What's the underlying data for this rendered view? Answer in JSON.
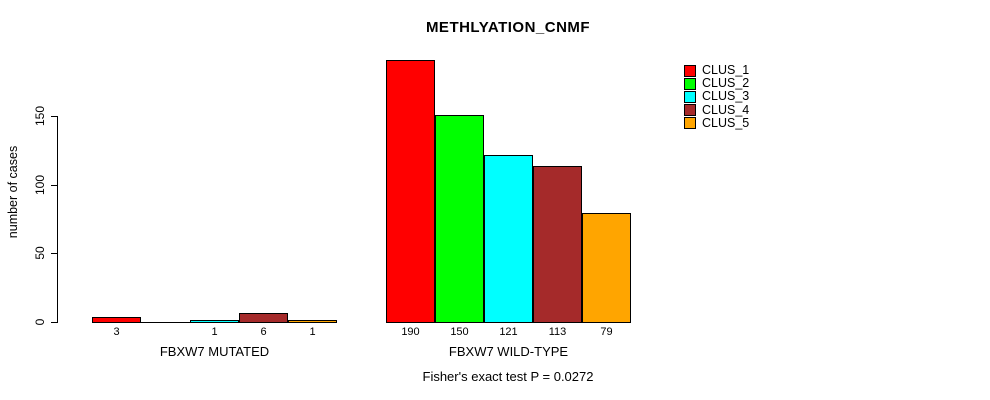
{
  "title": "METHLYATION_CNMF",
  "chart_data": {
    "type": "bar",
    "title": "METHLYATION_CNMF",
    "ylabel": "number of cases",
    "xlabel": "",
    "ylim": [
      0,
      195
    ],
    "yticks": [
      0,
      50,
      100,
      150
    ],
    "grid": false,
    "legend_position": "right",
    "series": [
      {
        "name": "CLUS_1",
        "color": "#FF0000"
      },
      {
        "name": "CLUS_2",
        "color": "#00FF00"
      },
      {
        "name": "CLUS_3",
        "color": "#00FFFF"
      },
      {
        "name": "CLUS_4",
        "color": "#A52A2A"
      },
      {
        "name": "CLUS_5",
        "color": "#FFA500"
      }
    ],
    "groups": [
      {
        "label": "FBXW7 MUTATED",
        "values": [
          3,
          0,
          1,
          6,
          1
        ],
        "bar_labels": [
          "3",
          "",
          "1",
          "6",
          "1"
        ]
      },
      {
        "label": "FBXW7 WILD-TYPE",
        "values": [
          190,
          150,
          121,
          113,
          79
        ],
        "bar_labels": [
          "190",
          "150",
          "121",
          "113",
          "79"
        ]
      }
    ],
    "annotation": "Fisher's exact test P = 0.0272"
  }
}
